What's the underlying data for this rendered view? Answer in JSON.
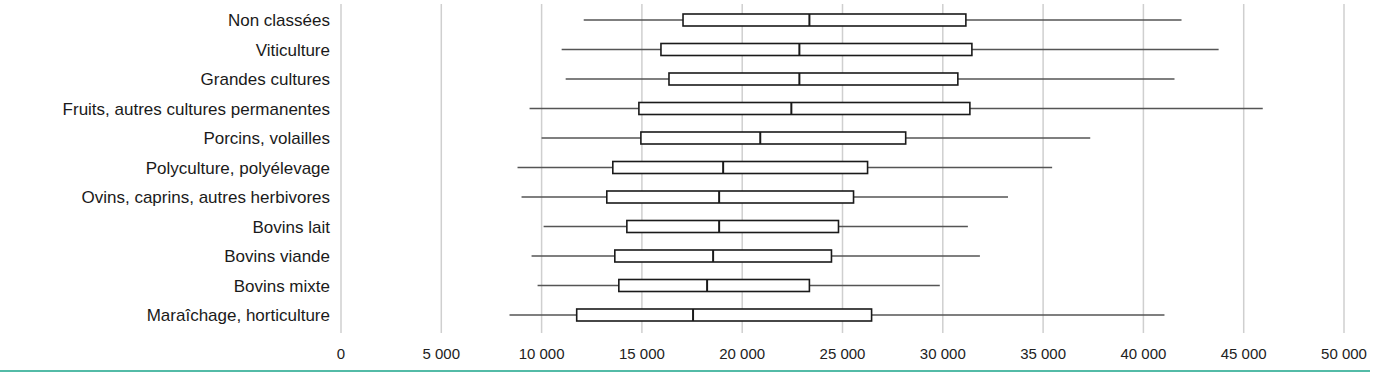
{
  "chart_data": {
    "type": "box",
    "orientation": "horizontal",
    "grid": true,
    "color": "#1a1a1a",
    "categories": [
      "Non classées",
      "Viticulture",
      "Grandes cultures",
      "Fruits, autres cultures permanentes",
      "Porcins, volailles",
      "Polyculture, polyélevage",
      "Ovins, caprins, autres herbivores",
      "Bovins lait",
      "Bovins viande",
      "Bovins mixte",
      "Maraîchage, horticulture"
    ],
    "min": [
      12100,
      11000,
      11200,
      9400,
      10000,
      8800,
      9000,
      10100,
      9500,
      9800,
      8400
    ],
    "q1": [
      17050,
      15950,
      16350,
      14850,
      14950,
      13550,
      13250,
      14250,
      13650,
      13850,
      11750
    ],
    "median": [
      23350,
      22850,
      22850,
      22450,
      20900,
      19050,
      18850,
      18850,
      18550,
      18250,
      17550
    ],
    "q3": [
      31150,
      31450,
      30750,
      31350,
      28150,
      26250,
      25550,
      24800,
      24450,
      23350,
      26450
    ],
    "max": [
      41900,
      43750,
      41550,
      45950,
      37350,
      35450,
      33250,
      31250,
      31850,
      29850,
      41050
    ],
    "xlim": [
      0,
      50000
    ],
    "xticks": [
      0,
      {
        "value": 5000,
        "label": "5 000"
      },
      {
        "value": 10000,
        "label": "10 000"
      },
      {
        "value": 15000,
        "label": "15 000"
      },
      {
        "value": 20000,
        "label": "20 000"
      },
      {
        "value": 25000,
        "label": "25 000"
      },
      {
        "value": 30000,
        "label": "30 000"
      },
      {
        "value": 35000,
        "label": "35 000"
      },
      {
        "value": 40000,
        "label": "40 000"
      },
      {
        "value": 45000,
        "label": "45 000"
      },
      {
        "value": 50000,
        "label": "50 000"
      }
    ]
  }
}
